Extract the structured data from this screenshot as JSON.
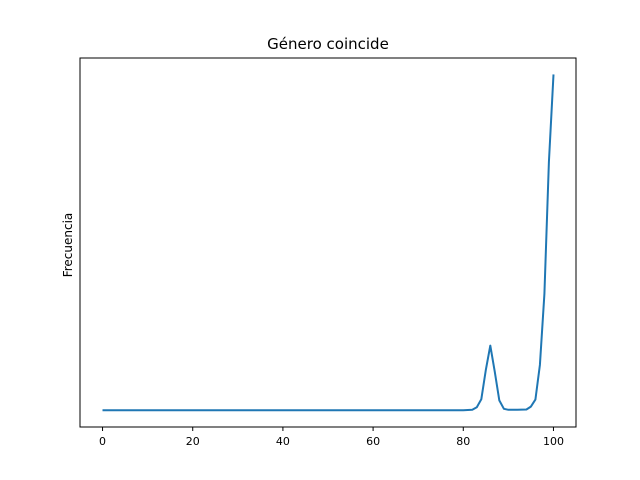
{
  "chart_data": {
    "type": "line",
    "title": "Género coincide",
    "xlabel": "",
    "ylabel": "Frecuencia",
    "xlim": [
      -5,
      105
    ],
    "ylim": [
      -4.6,
      96.5
    ],
    "xticks": [
      0,
      20,
      40,
      60,
      80,
      100
    ],
    "xtick_labels": [
      "0",
      "20",
      "40",
      "60",
      "80",
      "100"
    ],
    "yticks_shown": false,
    "grid": false,
    "legend": "none",
    "line_color": "#1f77b4",
    "series": [
      {
        "x": [
          0,
          10,
          20,
          30,
          40,
          50,
          60,
          70,
          80,
          82,
          83,
          84,
          85,
          86,
          87,
          88,
          89,
          90,
          92,
          94,
          95,
          96,
          97,
          98,
          99,
          100
        ],
        "y": [
          0,
          0,
          0,
          0,
          0,
          0,
          0,
          0,
          0,
          0.1,
          0.8,
          3.0,
          11.0,
          17.7,
          10.5,
          2.7,
          0.4,
          0.1,
          0.1,
          0.2,
          1.0,
          2.9,
          12.4,
          31.8,
          68.0,
          92.0
        ]
      }
    ]
  }
}
